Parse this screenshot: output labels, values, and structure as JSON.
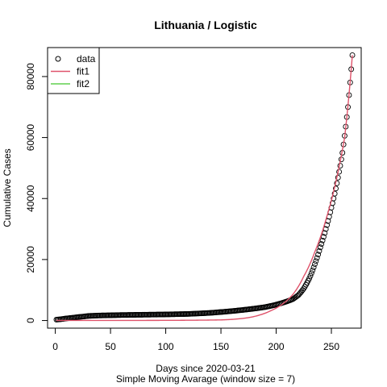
{
  "chart_data": {
    "type": "line",
    "title": "Lithuania / Logistic",
    "xlabel": "Days since 2020-03-21",
    "xlabel_sub": "Simple Moving Avarage (window size = 7)",
    "ylabel": "Cumulative Cases",
    "xlim": [
      -7,
      277
    ],
    "ylim": [
      -2500,
      89500
    ],
    "x_ticks": [
      0,
      50,
      100,
      150,
      200,
      250
    ],
    "y_ticks": [
      0,
      20000,
      40000,
      60000,
      80000
    ],
    "legend": {
      "position": "top-left",
      "entries": [
        {
          "label": "data",
          "symbol": "circle",
          "color": "#000000"
        },
        {
          "label": "fit1",
          "symbol": "line",
          "color": "#DF536B"
        },
        {
          "label": "fit2",
          "symbol": "line",
          "color": "#61D04F"
        }
      ]
    },
    "series": [
      {
        "name": "data",
        "kind": "points",
        "color": "#000000",
        "x_range": [
          1,
          269
        ],
        "points": [
          [
            1,
            300
          ],
          [
            10,
            700
          ],
          [
            20,
            1100
          ],
          [
            30,
            1500
          ],
          [
            40,
            1650
          ],
          [
            60,
            1800
          ],
          [
            80,
            1900
          ],
          [
            100,
            2000
          ],
          [
            120,
            2150
          ],
          [
            140,
            2500
          ],
          [
            160,
            3100
          ],
          [
            180,
            3900
          ],
          [
            190,
            4400
          ],
          [
            200,
            5200
          ],
          [
            210,
            6300
          ],
          [
            215,
            7000
          ],
          [
            220,
            8300
          ],
          [
            225,
            10500
          ],
          [
            230,
            13800
          ],
          [
            235,
            18500
          ],
          [
            240,
            24000
          ],
          [
            245,
            30000
          ],
          [
            250,
            37000
          ],
          [
            255,
            45000
          ],
          [
            260,
            55000
          ],
          [
            265,
            70000
          ],
          [
            269,
            87000
          ]
        ]
      },
      {
        "name": "fit1",
        "kind": "line",
        "color": "#DF536B",
        "x_range": [
          1,
          269
        ],
        "points": [
          [
            0,
            20
          ],
          [
            50,
            30
          ],
          [
            100,
            50
          ],
          [
            150,
            200
          ],
          [
            170,
            700
          ],
          [
            185,
            1800
          ],
          [
            195,
            3200
          ],
          [
            205,
            5200
          ],
          [
            215,
            8500
          ],
          [
            225,
            14500
          ],
          [
            235,
            22500
          ],
          [
            245,
            33000
          ],
          [
            255,
            47000
          ],
          [
            262,
            60000
          ],
          [
            269,
            87000
          ]
        ]
      },
      {
        "name": "fit2",
        "kind": "line",
        "color": "#61D04F",
        "x_range": [
          1,
          269
        ],
        "points": []
      }
    ]
  }
}
